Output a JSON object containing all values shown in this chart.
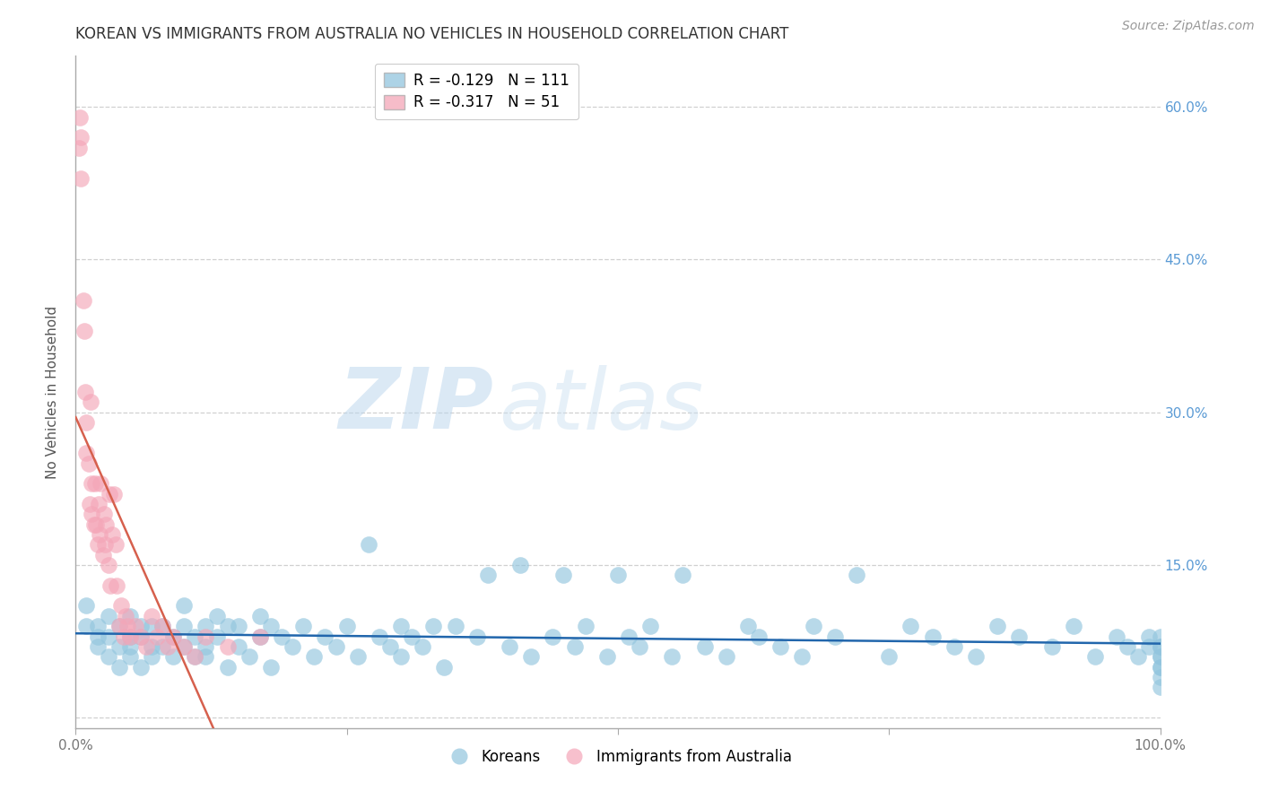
{
  "title": "KOREAN VS IMMIGRANTS FROM AUSTRALIA NO VEHICLES IN HOUSEHOLD CORRELATION CHART",
  "source_text": "Source: ZipAtlas.com",
  "ylabel": "No Vehicles in Household",
  "xlabel": "",
  "xlim": [
    0.0,
    1.0
  ],
  "ylim": [
    -0.01,
    0.65
  ],
  "yticks": [
    0.0,
    0.15,
    0.3,
    0.45,
    0.6
  ],
  "xticks": [
    0.0,
    0.25,
    0.5,
    0.75,
    1.0
  ],
  "xtick_labels": [
    "0.0%",
    "",
    "",
    "",
    "100.0%"
  ],
  "blue_color": "#92c5de",
  "pink_color": "#f4a6b8",
  "blue_line_color": "#2166ac",
  "pink_line_color": "#d6604d",
  "legend_blue_R": "-0.129",
  "legend_blue_N": "111",
  "legend_pink_R": "-0.317",
  "legend_pink_N": "51",
  "legend_label_blue": "Koreans",
  "legend_label_pink": "Immigrants from Australia",
  "watermark_zip": "ZIP",
  "watermark_atlas": "atlas",
  "background_color": "#ffffff",
  "grid_color": "#d0d0d0",
  "right_tick_color": "#5b9bd5",
  "title_fontsize": 12,
  "source_fontsize": 10,
  "ylabel_fontsize": 11,
  "tick_fontsize": 11,
  "legend_fontsize": 12,
  "blue_x": [
    0.01,
    0.01,
    0.02,
    0.02,
    0.02,
    0.03,
    0.03,
    0.03,
    0.04,
    0.04,
    0.04,
    0.05,
    0.05,
    0.05,
    0.05,
    0.06,
    0.06,
    0.06,
    0.07,
    0.07,
    0.07,
    0.08,
    0.08,
    0.09,
    0.09,
    0.1,
    0.1,
    0.1,
    0.11,
    0.11,
    0.12,
    0.12,
    0.12,
    0.13,
    0.13,
    0.14,
    0.14,
    0.15,
    0.15,
    0.16,
    0.17,
    0.17,
    0.18,
    0.18,
    0.19,
    0.2,
    0.21,
    0.22,
    0.23,
    0.24,
    0.25,
    0.26,
    0.27,
    0.28,
    0.29,
    0.3,
    0.3,
    0.31,
    0.32,
    0.33,
    0.34,
    0.35,
    0.37,
    0.38,
    0.4,
    0.41,
    0.42,
    0.44,
    0.45,
    0.46,
    0.47,
    0.49,
    0.5,
    0.51,
    0.52,
    0.53,
    0.55,
    0.56,
    0.58,
    0.6,
    0.62,
    0.63,
    0.65,
    0.67,
    0.68,
    0.7,
    0.72,
    0.75,
    0.77,
    0.79,
    0.81,
    0.83,
    0.85,
    0.87,
    0.9,
    0.92,
    0.94,
    0.96,
    0.97,
    0.98,
    0.99,
    0.99,
    1.0,
    1.0,
    1.0,
    1.0,
    1.0,
    1.0,
    1.0,
    1.0,
    1.0
  ],
  "blue_y": [
    0.09,
    0.11,
    0.07,
    0.09,
    0.08,
    0.06,
    0.08,
    0.1,
    0.05,
    0.07,
    0.09,
    0.06,
    0.08,
    0.07,
    0.1,
    0.05,
    0.08,
    0.09,
    0.07,
    0.09,
    0.06,
    0.07,
    0.09,
    0.06,
    0.08,
    0.07,
    0.09,
    0.11,
    0.06,
    0.08,
    0.07,
    0.09,
    0.06,
    0.08,
    0.1,
    0.05,
    0.09,
    0.07,
    0.09,
    0.06,
    0.08,
    0.1,
    0.05,
    0.09,
    0.08,
    0.07,
    0.09,
    0.06,
    0.08,
    0.07,
    0.09,
    0.06,
    0.17,
    0.08,
    0.07,
    0.09,
    0.06,
    0.08,
    0.07,
    0.09,
    0.05,
    0.09,
    0.08,
    0.14,
    0.07,
    0.15,
    0.06,
    0.08,
    0.14,
    0.07,
    0.09,
    0.06,
    0.14,
    0.08,
    0.07,
    0.09,
    0.06,
    0.14,
    0.07,
    0.06,
    0.09,
    0.08,
    0.07,
    0.06,
    0.09,
    0.08,
    0.14,
    0.06,
    0.09,
    0.08,
    0.07,
    0.06,
    0.09,
    0.08,
    0.07,
    0.09,
    0.06,
    0.08,
    0.07,
    0.06,
    0.08,
    0.07,
    0.05,
    0.06,
    0.07,
    0.08,
    0.06,
    0.03,
    0.07,
    0.05,
    0.04
  ],
  "pink_x": [
    0.003,
    0.004,
    0.005,
    0.005,
    0.007,
    0.008,
    0.009,
    0.01,
    0.01,
    0.012,
    0.013,
    0.014,
    0.015,
    0.015,
    0.017,
    0.018,
    0.019,
    0.02,
    0.021,
    0.022,
    0.023,
    0.025,
    0.026,
    0.027,
    0.028,
    0.03,
    0.031,
    0.032,
    0.034,
    0.035,
    0.037,
    0.038,
    0.04,
    0.042,
    0.044,
    0.046,
    0.048,
    0.05,
    0.055,
    0.06,
    0.065,
    0.07,
    0.075,
    0.08,
    0.085,
    0.09,
    0.1,
    0.11,
    0.12,
    0.14,
    0.17
  ],
  "pink_y": [
    0.56,
    0.59,
    0.53,
    0.57,
    0.41,
    0.38,
    0.32,
    0.29,
    0.26,
    0.25,
    0.21,
    0.31,
    0.23,
    0.2,
    0.19,
    0.23,
    0.19,
    0.17,
    0.21,
    0.18,
    0.23,
    0.16,
    0.2,
    0.17,
    0.19,
    0.15,
    0.22,
    0.13,
    0.18,
    0.22,
    0.17,
    0.13,
    0.09,
    0.11,
    0.08,
    0.1,
    0.09,
    0.08,
    0.09,
    0.08,
    0.07,
    0.1,
    0.08,
    0.09,
    0.07,
    0.08,
    0.07,
    0.06,
    0.08,
    0.07,
    0.08
  ]
}
